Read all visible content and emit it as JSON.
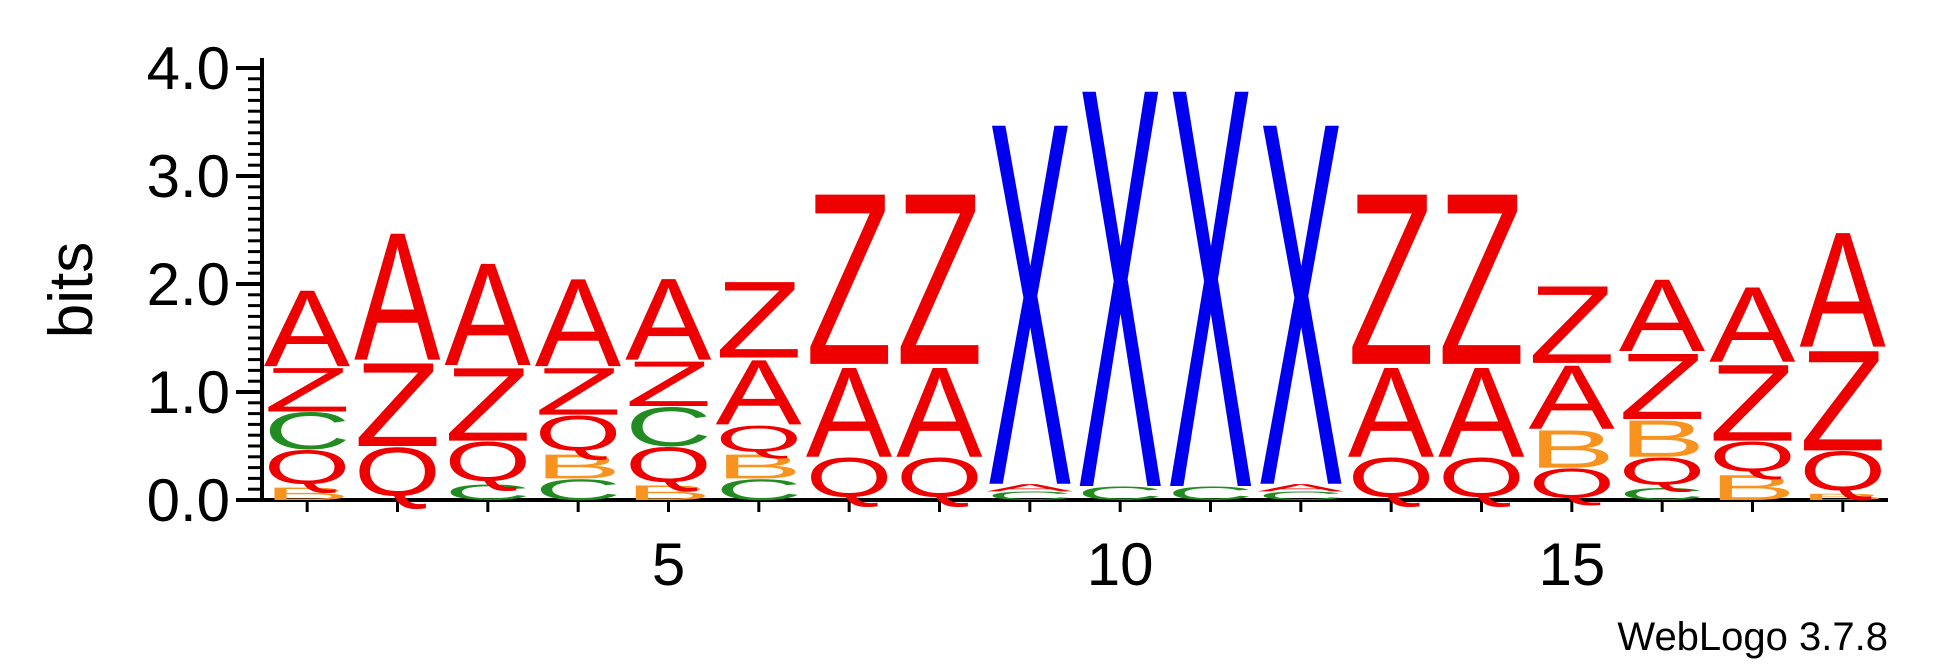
{
  "chart_data": {
    "type": "sequence-logo",
    "ylabel": "bits",
    "ylim": [
      0,
      4.0
    ],
    "yticks": [
      "0.0",
      "1.0",
      "2.0",
      "3.0",
      "4.0"
    ],
    "xticks": [
      {
        "position": 5,
        "label": "5"
      },
      {
        "position": 10,
        "label": "10"
      },
      {
        "position": 15,
        "label": "15"
      }
    ],
    "colors": {
      "A": "#ee0000",
      "Z": "#ee0000",
      "Q": "#ee0000",
      "X": "#0000ee",
      "C": "#228b22",
      "B": "#f7931e"
    },
    "positions": [
      {
        "pos": 1,
        "stack": [
          [
            "B",
            0.12
          ],
          [
            "Q",
            0.35
          ],
          [
            "C",
            0.35
          ],
          [
            "Z",
            0.42
          ],
          [
            "A",
            0.73
          ]
        ]
      },
      {
        "pos": 2,
        "stack": [
          [
            "Q",
            0.5
          ],
          [
            "Z",
            0.8
          ],
          [
            "A",
            1.22
          ]
        ]
      },
      {
        "pos": 3,
        "stack": [
          [
            "C",
            0.15
          ],
          [
            "Q",
            0.4
          ],
          [
            "Z",
            0.7
          ],
          [
            "A",
            0.98
          ]
        ]
      },
      {
        "pos": 4,
        "stack": [
          [
            "C",
            0.2
          ],
          [
            "B",
            0.23
          ],
          [
            "Q",
            0.36
          ],
          [
            "Z",
            0.45
          ],
          [
            "A",
            0.84
          ]
        ]
      },
      {
        "pos": 5,
        "stack": [
          [
            "B",
            0.14
          ],
          [
            "Q",
            0.36
          ],
          [
            "C",
            0.37
          ],
          [
            "Z",
            0.43
          ],
          [
            "A",
            0.78
          ]
        ]
      },
      {
        "pos": 6,
        "stack": [
          [
            "C",
            0.2
          ],
          [
            "B",
            0.23
          ],
          [
            "Q",
            0.27
          ],
          [
            "A",
            0.62
          ],
          [
            "Z",
            0.73
          ]
        ]
      },
      {
        "pos": 7,
        "stack": [
          [
            "Q",
            0.4
          ],
          [
            "A",
            0.86
          ],
          [
            "Z",
            1.64
          ]
        ]
      },
      {
        "pos": 8,
        "stack": [
          [
            "Q",
            0.4
          ],
          [
            "A",
            0.86
          ],
          [
            "Z",
            1.64
          ]
        ]
      },
      {
        "pos": 9,
        "stack": [
          [
            "C",
            0.08
          ],
          [
            "A",
            0.07
          ],
          [
            "X",
            3.47
          ]
        ]
      },
      {
        "pos": 10,
        "stack": [
          [
            "C",
            0.13
          ],
          [
            "X",
            3.82
          ]
        ]
      },
      {
        "pos": 11,
        "stack": [
          [
            "C",
            0.13
          ],
          [
            "X",
            3.82
          ]
        ]
      },
      {
        "pos": 12,
        "stack": [
          [
            "C",
            0.08
          ],
          [
            "A",
            0.07
          ],
          [
            "X",
            3.47
          ]
        ]
      },
      {
        "pos": 13,
        "stack": [
          [
            "Q",
            0.4
          ],
          [
            "A",
            0.86
          ],
          [
            "Z",
            1.64
          ]
        ]
      },
      {
        "pos": 14,
        "stack": [
          [
            "Q",
            0.4
          ],
          [
            "A",
            0.86
          ],
          [
            "Z",
            1.64
          ]
        ]
      },
      {
        "pos": 15,
        "stack": [
          [
            "Q",
            0.3
          ],
          [
            "B",
            0.36
          ],
          [
            "A",
            0.61
          ],
          [
            "Z",
            0.74
          ]
        ]
      },
      {
        "pos": 16,
        "stack": [
          [
            "C",
            0.12
          ],
          [
            "Q",
            0.28
          ],
          [
            "B",
            0.35
          ],
          [
            "Z",
            0.63
          ],
          [
            "A",
            0.69
          ]
        ]
      },
      {
        "pos": 17,
        "stack": [
          [
            "B",
            0.24
          ],
          [
            "Q",
            0.31
          ],
          [
            "Z",
            0.73
          ],
          [
            "A",
            0.72
          ]
        ]
      },
      {
        "pos": 18,
        "stack": [
          [
            "B",
            0.06
          ],
          [
            "Q",
            0.4
          ],
          [
            "Z",
            0.96
          ],
          [
            "A",
            1.1
          ]
        ]
      }
    ]
  },
  "credit": "WebLogo 3.7.8"
}
